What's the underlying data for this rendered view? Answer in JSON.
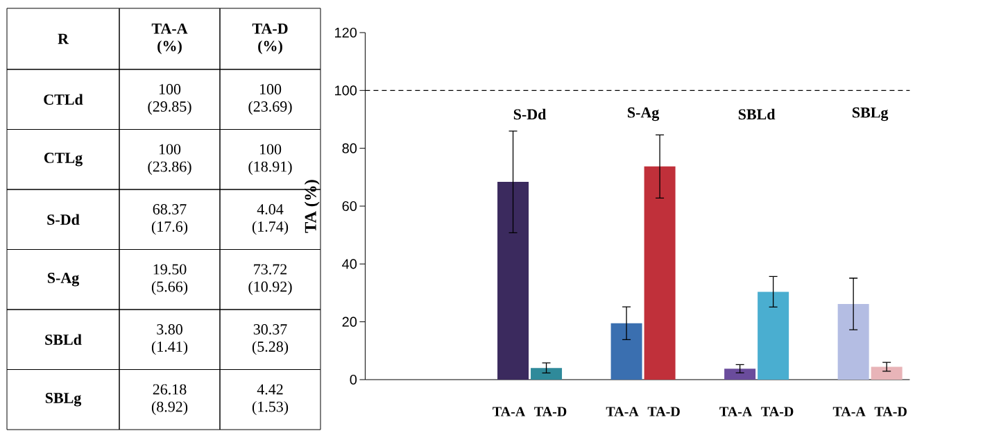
{
  "chart_data": [
    {
      "type": "other",
      "ylabel": "R",
      "categories": [
        "TA-A (%)",
        "TA-D (%)"
      ],
      "y_categories": [
        "CTLd",
        "CTLg",
        "S-Dd",
        "S-Ag",
        "SBLd",
        "SBLg"
      ],
      "cell_labels": [
        [
          "100 (29.85)",
          "100 (23.69)"
        ],
        [
          "100 (23.86)",
          "100 (18.91)"
        ],
        [
          "68.37 (17.6)",
          "4.04 (1.74)"
        ],
        [
          "19.50 (5.66)",
          "73.72 (10.92)"
        ],
        [
          "3.80 (1.41)",
          "30.37 (5.28)"
        ],
        [
          "26.18 (8.92)",
          "4.42 (1.53)"
        ]
      ]
    },
    {
      "type": "bar",
      "ylabel": "TA (%)",
      "categories": [
        null,
        "S-Dd",
        "S-Ag",
        "SBLd",
        "SBLg"
      ],
      "ylim": [
        0,
        120
      ],
      "yticks": [
        0,
        20,
        40,
        60,
        80,
        100,
        120
      ],
      "series": [
        {
          "name": "TA-A",
          "colors": [
            "#3b2a5e",
            "#3b2a5e",
            "#3a6fb0",
            "#6a4c9c",
            "#b4bde3"
          ],
          "values": [
            null,
            68.37,
            19.5,
            3.8,
            26.18
          ],
          "errors": [
            null,
            17.6,
            5.66,
            1.41,
            8.92
          ]
        },
        {
          "name": "TA-D",
          "colors": [
            "#2f8a9a",
            "#2f8a9a",
            "#c0303a",
            "#4aaed0",
            "#e8b4b8"
          ],
          "values": [
            null,
            4.04,
            73.72,
            30.37,
            4.42
          ],
          "errors": [
            null,
            1.74,
            10.92,
            5.28,
            1.53
          ]
        }
      ],
      "ref_lines": [
        {
          "axis": "y",
          "value": 100,
          "line_style": "dashed"
        }
      ]
    }
  ]
}
